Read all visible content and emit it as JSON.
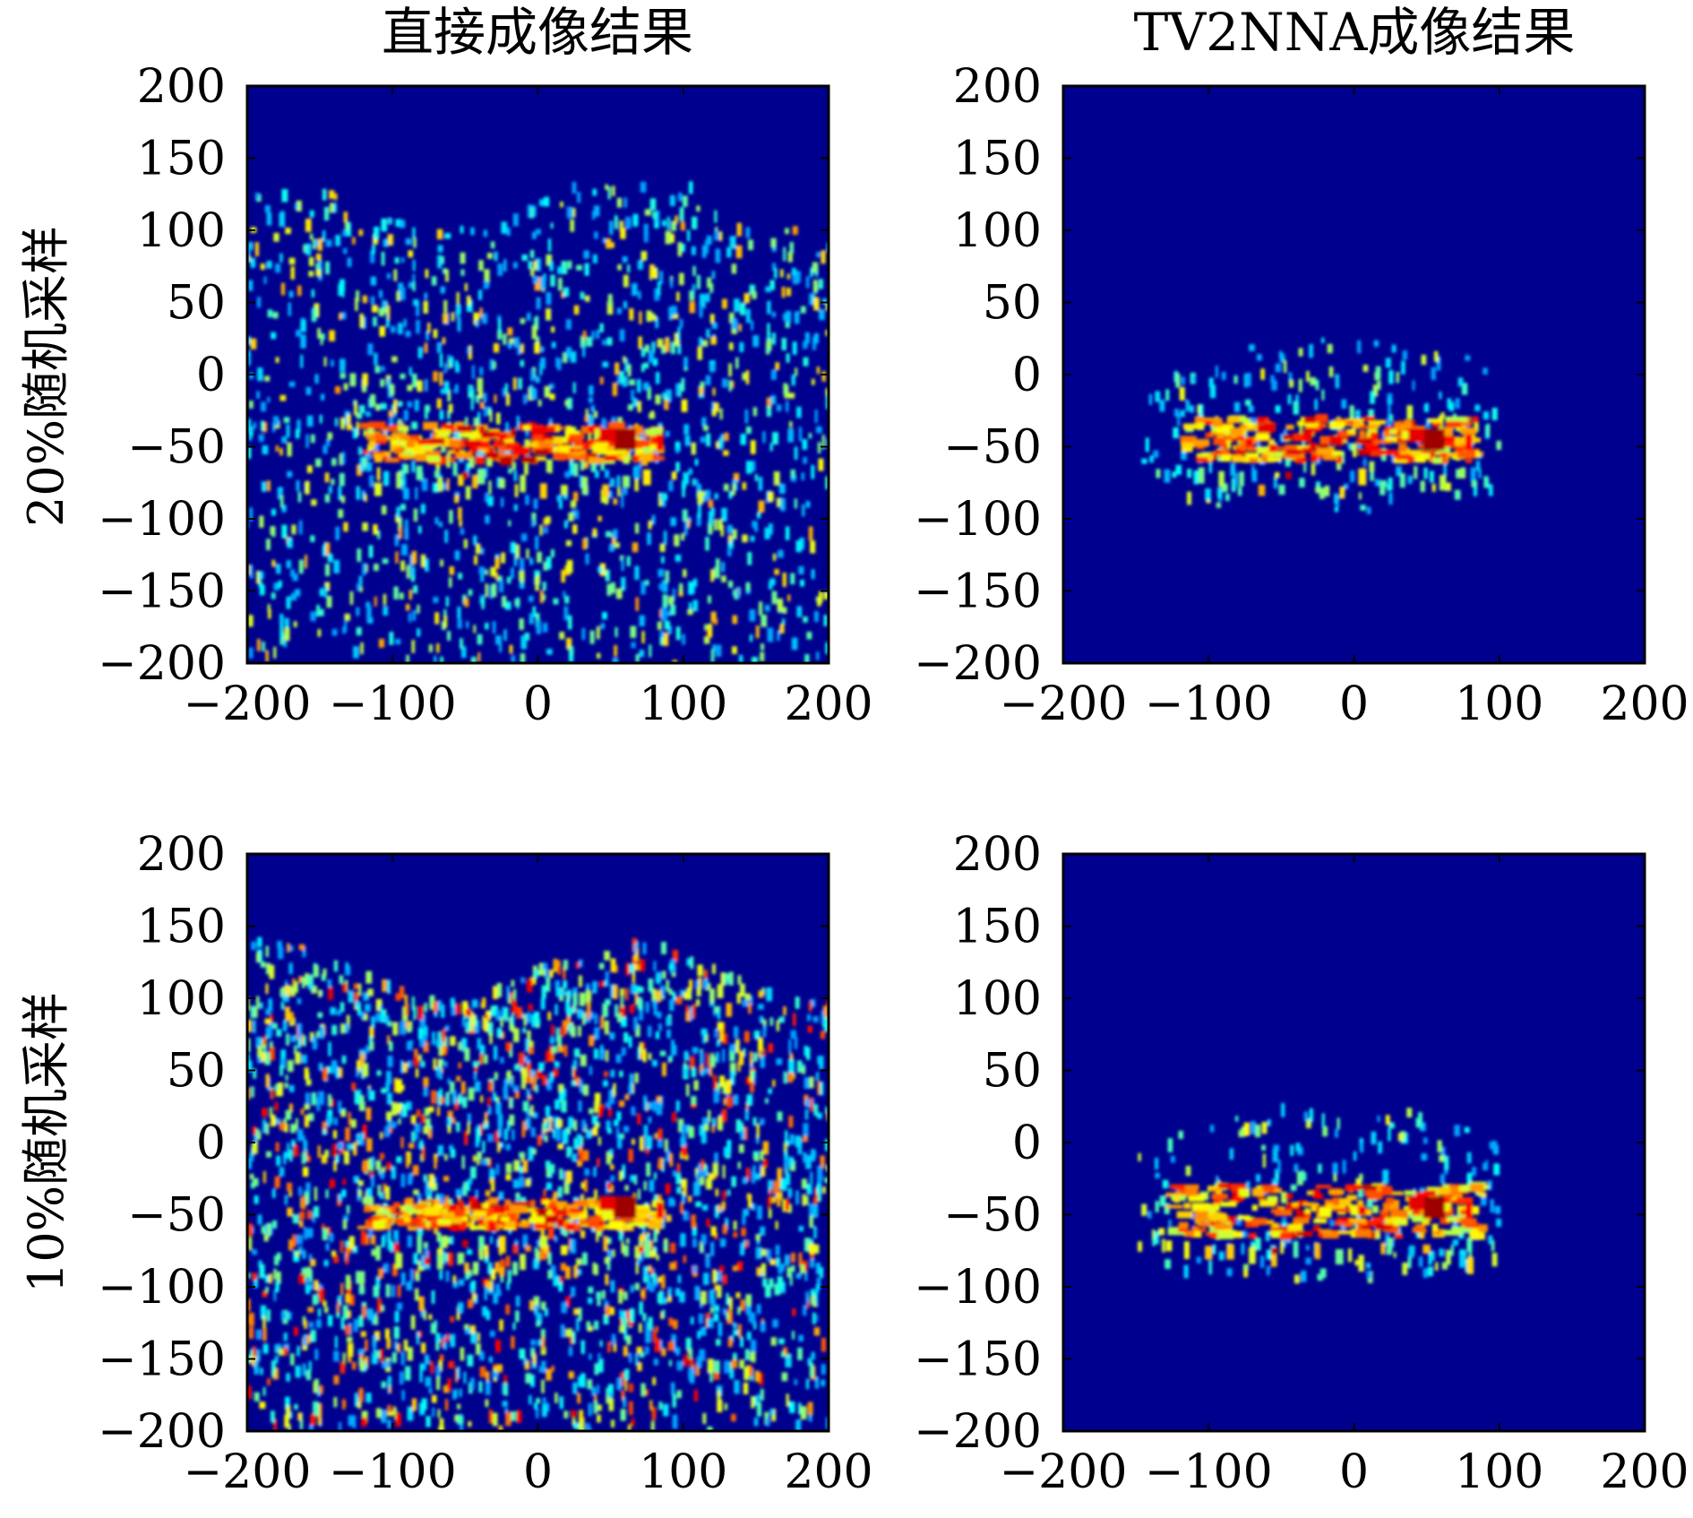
{
  "figure": {
    "column_titles": [
      "直接成像结果",
      "TV2NNA成像结果"
    ],
    "row_labels": [
      "20%随机采样",
      "10%随机采样"
    ]
  },
  "chart_data": [
    {
      "type": "heatmap",
      "row": 0,
      "col": 0,
      "title": "直接成像结果",
      "ylabel": "20%随机采样",
      "xlabel": "",
      "xlim": [
        -200,
        200
      ],
      "ylim": [
        -200,
        200
      ],
      "xticks": [
        -200,
        -100,
        0,
        100,
        200
      ],
      "yticks": [
        200,
        150,
        100,
        50,
        0,
        -50,
        -100,
        -150,
        -200
      ],
      "colormap": "jet",
      "grid": false,
      "target_band": {
        "x": [
          -120,
          85
        ],
        "y": [
          -35,
          -60
        ]
      },
      "peak": {
        "x": 60,
        "y": -45
      },
      "noise_level": "moderate",
      "noise_extent": "full",
      "background": "#00008f"
    },
    {
      "type": "heatmap",
      "row": 0,
      "col": 1,
      "title": "TV2NNA成像结果",
      "ylabel": "",
      "xlabel": "",
      "xlim": [
        -200,
        200
      ],
      "ylim": [
        -200,
        200
      ],
      "xticks": [
        -200,
        -100,
        0,
        100,
        200
      ],
      "yticks": [
        200,
        150,
        100,
        50,
        0,
        -50,
        -100,
        -150,
        -200
      ],
      "colormap": "jet",
      "grid": false,
      "target_band": {
        "x": [
          -115,
          85
        ],
        "y": [
          -30,
          -60
        ]
      },
      "peak": {
        "x": 55,
        "y": -45
      },
      "noise_level": "low",
      "noise_extent": "target",
      "background": "#00008f"
    },
    {
      "type": "heatmap",
      "row": 1,
      "col": 0,
      "title": "",
      "ylabel": "10%随机采样",
      "xlabel": "",
      "xlim": [
        -200,
        200
      ],
      "ylim": [
        -200,
        200
      ],
      "xticks": [
        -200,
        -100,
        0,
        100,
        200
      ],
      "yticks": [
        200,
        150,
        100,
        50,
        0,
        -50,
        -100,
        -150,
        -200
      ],
      "colormap": "jet",
      "grid": false,
      "target_band": {
        "x": [
          -120,
          85
        ],
        "y": [
          -40,
          -60
        ]
      },
      "peak": {
        "x": 60,
        "y": -45
      },
      "noise_level": "high",
      "noise_extent": "full",
      "background": "#00008f"
    },
    {
      "type": "heatmap",
      "row": 1,
      "col": 1,
      "title": "",
      "ylabel": "",
      "xlabel": "",
      "xlim": [
        -200,
        200
      ],
      "ylim": [
        -200,
        200
      ],
      "xticks": [
        -200,
        -100,
        0,
        100,
        200
      ],
      "yticks": [
        200,
        150,
        100,
        50,
        0,
        -50,
        -100,
        -150,
        -200
      ],
      "colormap": "jet",
      "grid": false,
      "target_band": {
        "x": [
          -125,
          90
        ],
        "y": [
          -30,
          -65
        ]
      },
      "peak": {
        "x": 55,
        "y": -45
      },
      "noise_level": "low",
      "noise_extent": "target",
      "background": "#00008f"
    }
  ]
}
